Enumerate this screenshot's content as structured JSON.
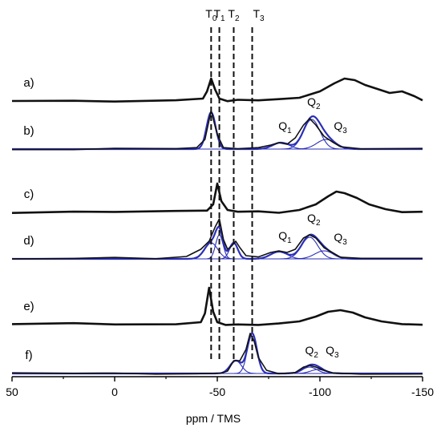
{
  "chart_data": {
    "type": "line",
    "xlabel": "ppm / TMS",
    "xlim": [
      50,
      -150
    ],
    "x_ticks": [
      "50",
      "0",
      "-50",
      "-100",
      "-150"
    ],
    "grid": false,
    "x_reversed": true,
    "reference_lines": [
      {
        "label": "T",
        "sub": "0",
        "x": -47
      },
      {
        "label": "T",
        "sub": "1",
        "x": -51
      },
      {
        "label": "T",
        "sub": "2",
        "x": -58
      },
      {
        "label": "T",
        "sub": "3",
        "x": -67
      }
    ],
    "traces": [
      {
        "label": "a)",
        "baseline": -126,
        "color": "#111111",
        "x": [
          50,
          20,
          0,
          -30,
          -43,
          -45,
          -47,
          -49,
          -51,
          -55,
          -60,
          -70,
          -80,
          -90,
          -100,
          -107,
          -112,
          -117,
          -122,
          -128,
          -134,
          -140,
          -146,
          -150
        ],
        "y": [
          0,
          1,
          0,
          1,
          3,
          12,
          28,
          14,
          3,
          0,
          1,
          0,
          2,
          4,
          12,
          22,
          28,
          26,
          20,
          15,
          10,
          12,
          6,
          0
        ],
        "components": []
      },
      {
        "label": "b)",
        "baseline": -186,
        "color": "#111111",
        "fit_color": "#2b2fb8",
        "x": [
          50,
          20,
          0,
          -30,
          -40,
          -44,
          -47,
          -50,
          -53,
          -60,
          -70,
          -76,
          -80,
          -84,
          -88,
          -92,
          -95,
          -98,
          -102,
          -106,
          -110,
          -120,
          -150
        ],
        "y": [
          0,
          0,
          1,
          0,
          1,
          12,
          48,
          18,
          2,
          0,
          1,
          5,
          8,
          6,
          14,
          30,
          38,
          30,
          16,
          9,
          3,
          0,
          0
        ],
        "peak_labels": [
          {
            "label": "Q",
            "sub": "1",
            "x": -83,
            "y": 18
          },
          {
            "label": "Q",
            "sub": "2",
            "x": -97,
            "y": 48
          },
          {
            "label": "Q",
            "sub": "3",
            "x": -110,
            "y": 18
          }
        ],
        "components": [
          {
            "center": -47,
            "width": 2.2,
            "height": 46
          },
          {
            "center": -81,
            "width": 4,
            "height": 8
          },
          {
            "center": -96,
            "width": 4,
            "height": 37
          },
          {
            "center": -103,
            "width": 4.5,
            "height": 12
          }
        ]
      },
      {
        "label": "c)",
        "baseline": -265,
        "color": "#111111",
        "x": [
          50,
          20,
          0,
          -30,
          -45,
          -48,
          -50,
          -52,
          -55,
          -60,
          -70,
          -80,
          -90,
          -98,
          -104,
          -108,
          -112,
          -118,
          -124,
          -132,
          -140,
          -150
        ],
        "y": [
          0,
          1,
          0,
          1,
          2,
          10,
          36,
          14,
          3,
          0,
          1,
          0,
          3,
          10,
          20,
          26,
          24,
          18,
          10,
          4,
          0,
          0
        ],
        "components": []
      },
      {
        "label": "d)",
        "baseline": -323,
        "color": "#111111",
        "fit_color": "#2b2fb8",
        "x": [
          50,
          20,
          0,
          -20,
          -35,
          -42,
          -46,
          -49,
          -51,
          -53,
          -55,
          -57,
          -59,
          -61,
          -64,
          -70,
          -76,
          -80,
          -84,
          -88,
          -92,
          -95,
          -98,
          -102,
          -106,
          -110,
          -120,
          -150
        ],
        "y": [
          0,
          0,
          1,
          0,
          3,
          12,
          22,
          40,
          50,
          24,
          12,
          16,
          22,
          14,
          4,
          2,
          8,
          10,
          8,
          12,
          26,
          30,
          26,
          14,
          8,
          2,
          0,
          0
        ],
        "peak_labels": [
          {
            "label": "Q",
            "sub": "1",
            "x": -83,
            "y": 18
          },
          {
            "label": "Q",
            "sub": "2",
            "x": -97,
            "y": 40
          },
          {
            "label": "Q",
            "sub": "3",
            "x": -110,
            "y": 16
          }
        ],
        "components": [
          {
            "center": -47,
            "width": 3.2,
            "height": 20
          },
          {
            "center": -51,
            "width": 1.8,
            "height": 30
          },
          {
            "center": -58,
            "width": 2,
            "height": 20
          },
          {
            "center": -80,
            "width": 4,
            "height": 9
          },
          {
            "center": -95,
            "width": 4,
            "height": 27
          },
          {
            "center": -102,
            "width": 4.5,
            "height": 10
          }
        ]
      },
      {
        "label": "e)",
        "baseline": -405,
        "color": "#111111",
        "x": [
          50,
          20,
          0,
          -30,
          -42,
          -44,
          -46,
          -48,
          -50,
          -54,
          -60,
          -70,
          -80,
          -90,
          -98,
          -104,
          -110,
          -116,
          -122,
          -130,
          -140,
          -150
        ],
        "y": [
          0,
          1,
          0,
          1,
          3,
          14,
          46,
          16,
          3,
          0,
          1,
          0,
          1,
          4,
          10,
          16,
          18,
          15,
          9,
          4,
          0,
          0
        ],
        "components": []
      },
      {
        "label": "f)",
        "baseline": -466,
        "color": "#111111",
        "fit_color": "#2b2fb8",
        "x": [
          50,
          20,
          0,
          -20,
          -40,
          -52,
          -55,
          -58,
          -61,
          -64,
          -66,
          -68,
          -70,
          -74,
          -80,
          -88,
          -92,
          -95,
          -98,
          -102,
          -106,
          -120,
          -150
        ],
        "y": [
          0,
          0,
          1,
          0,
          0,
          0,
          3,
          16,
          16,
          30,
          50,
          40,
          20,
          4,
          0,
          2,
          8,
          10,
          8,
          4,
          1,
          0,
          0
        ],
        "peak_labels": [
          {
            "label": "Q",
            "sub": "2",
            "x": -96,
            "y": 18
          },
          {
            "label": "Q",
            "sub": "3",
            "x": -106,
            "y": 18
          }
        ],
        "components": [
          {
            "center": -59,
            "width": 2.8,
            "height": 16
          },
          {
            "center": -67,
            "width": 2.3,
            "height": 50
          },
          {
            "center": -95,
            "width": 3.5,
            "height": 8
          },
          {
            "center": -99,
            "width": 3.5,
            "height": 5
          }
        ]
      }
    ]
  }
}
